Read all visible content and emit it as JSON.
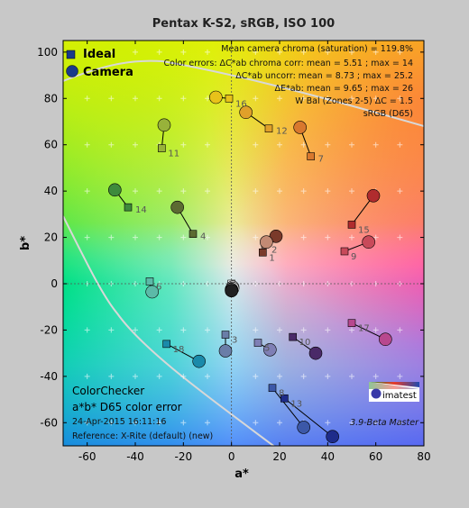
{
  "chart_data": {
    "type": "scatter",
    "title": "Pentax K-S2, sRGB, ISO 100",
    "xlabel": "a*",
    "ylabel": "b*",
    "xlim": [
      -70,
      80
    ],
    "ylim": [
      -70,
      105
    ],
    "xticks": [
      -60,
      -40,
      -20,
      0,
      20,
      40,
      60,
      80
    ],
    "yticks": [
      100,
      80,
      60,
      40,
      20,
      0,
      -20,
      -40,
      -60
    ],
    "grid": "crosses",
    "legend_position": "top-left",
    "legend": [
      {
        "name": "Ideal",
        "marker": "square"
      },
      {
        "name": "Camera",
        "marker": "circle"
      }
    ],
    "stats": [
      "Mean camera chroma (saturation) = 119.8%",
      "Color errors: ΔC*ab chroma corr:  mean = 5.51 ;  max = 14",
      "ΔC*ab uncorr:  mean = 8.73 ;  max = 25.2",
      "ΔE*ab:  mean = 9.65 ;  max = 26",
      "W Bal (Zones 2-5) ΔC = 1.5",
      "sRGB (D65)"
    ],
    "info": {
      "line1": "ColorChecker",
      "line2": "a*b* D65 color error",
      "line3": "24-Apr-2015 16:11:16",
      "line4": "Reference: X-Rite (default) (new)"
    },
    "logo_text": "imatest",
    "version": "3.9-Beta  Master",
    "series": [
      {
        "name": "Ideal",
        "points": [
          {
            "label": "1",
            "a": 13,
            "b": 13.5,
            "color": "#7a3a2a"
          },
          {
            "label": "2",
            "a": 14,
            "b": 17,
            "color": "#c28a74"
          },
          {
            "label": "3",
            "a": -2.5,
            "b": -22,
            "color": "#6a7ea8"
          },
          {
            "label": "4",
            "a": -16,
            "b": 21.5,
            "color": "#5c6a32"
          },
          {
            "label": "5",
            "a": 11,
            "b": -25.5,
            "color": "#7f7fb5"
          },
          {
            "label": "6",
            "a": -34,
            "b": 1,
            "color": "#5cbaa8"
          },
          {
            "label": "7",
            "a": 33,
            "b": 55,
            "color": "#d8782e"
          },
          {
            "label": "8",
            "a": 17,
            "b": -45,
            "color": "#3c58a8"
          },
          {
            "label": "9",
            "a": 47,
            "b": 14,
            "color": "#c84a5a"
          },
          {
            "label": "10",
            "a": 25.5,
            "b": -23,
            "color": "#4a2a68"
          },
          {
            "label": "11",
            "a": -29,
            "b": 58.5,
            "color": "#98b23a"
          },
          {
            "label": "12",
            "a": 15.5,
            "b": 67,
            "color": "#e0a02a"
          },
          {
            "label": "13",
            "a": 22,
            "b": -49.5,
            "color": "#1e2c8a"
          },
          {
            "label": "14",
            "a": -43,
            "b": 33,
            "color": "#3e8a3c"
          },
          {
            "label": "15",
            "a": 50,
            "b": 25.5,
            "color": "#b02c2e"
          },
          {
            "label": "16",
            "a": -1,
            "b": 80,
            "color": "#e8c21a"
          },
          {
            "label": "17",
            "a": 50,
            "b": -17,
            "color": "#b8488e"
          },
          {
            "label": "18",
            "a": -27,
            "b": -26,
            "color": "#1a8aaa"
          },
          {
            "label": "",
            "a": 0,
            "b": 0,
            "color": "#ffffff"
          },
          {
            "label": "",
            "a": 0,
            "b": -1,
            "color": "#e0e0e0"
          },
          {
            "label": "",
            "a": 0,
            "b": -2,
            "color": "#b0b0b0"
          },
          {
            "label": "",
            "a": 0,
            "b": -2.5,
            "color": "#808080"
          },
          {
            "label": "",
            "a": 0,
            "b": -3,
            "color": "#505050"
          },
          {
            "label": "",
            "a": 0,
            "b": -3.5,
            "color": "#202020"
          }
        ]
      },
      {
        "name": "Camera",
        "points": [
          {
            "label": "1",
            "a": 18.5,
            "b": 20.5,
            "color": "#7a3a2a"
          },
          {
            "label": "2",
            "a": 14.5,
            "b": 18,
            "color": "#c28a74"
          },
          {
            "label": "3",
            "a": -2.5,
            "b": -29,
            "color": "#6a7ea8"
          },
          {
            "label": "4",
            "a": -22.5,
            "b": 33,
            "color": "#5c6a32"
          },
          {
            "label": "5",
            "a": 16,
            "b": -28.5,
            "color": "#7f7fb5"
          },
          {
            "label": "6",
            "a": -33,
            "b": -3.5,
            "color": "#5cbaa8"
          },
          {
            "label": "7",
            "a": 28.5,
            "b": 67.5,
            "color": "#d8782e"
          },
          {
            "label": "8",
            "a": 30,
            "b": -62,
            "color": "#3c58a8"
          },
          {
            "label": "9",
            "a": 57,
            "b": 18,
            "color": "#c84a5a"
          },
          {
            "label": "10",
            "a": 35,
            "b": -30,
            "color": "#4a2a68"
          },
          {
            "label": "11",
            "a": -28,
            "b": 68.5,
            "color": "#98b23a"
          },
          {
            "label": "12",
            "a": 6,
            "b": 74,
            "color": "#e0a02a"
          },
          {
            "label": "13",
            "a": 42,
            "b": -66,
            "color": "#1e2c8a"
          },
          {
            "label": "14",
            "a": -48.5,
            "b": 40.5,
            "color": "#3e8a3c"
          },
          {
            "label": "15",
            "a": 59,
            "b": 38,
            "color": "#b02c2e"
          },
          {
            "label": "16",
            "a": -6.5,
            "b": 80.5,
            "color": "#e8c21a"
          },
          {
            "label": "17",
            "a": 64,
            "b": -24,
            "color": "#b8488e"
          },
          {
            "label": "18",
            "a": -13.5,
            "b": -33.5,
            "color": "#1a8aaa"
          },
          {
            "label": "",
            "a": 0.5,
            "b": -1.5,
            "color": "#ffffff"
          },
          {
            "label": "",
            "a": 0.5,
            "b": -2,
            "color": "#e0e0e0"
          },
          {
            "label": "",
            "a": 0,
            "b": -2.5,
            "color": "#b0b0b0"
          },
          {
            "label": "",
            "a": 0,
            "b": -2.5,
            "color": "#808080"
          },
          {
            "label": "",
            "a": 0,
            "b": -3,
            "color": "#505050"
          },
          {
            "label": "",
            "a": 0,
            "b": -3,
            "color": "#202020"
          }
        ]
      }
    ]
  }
}
